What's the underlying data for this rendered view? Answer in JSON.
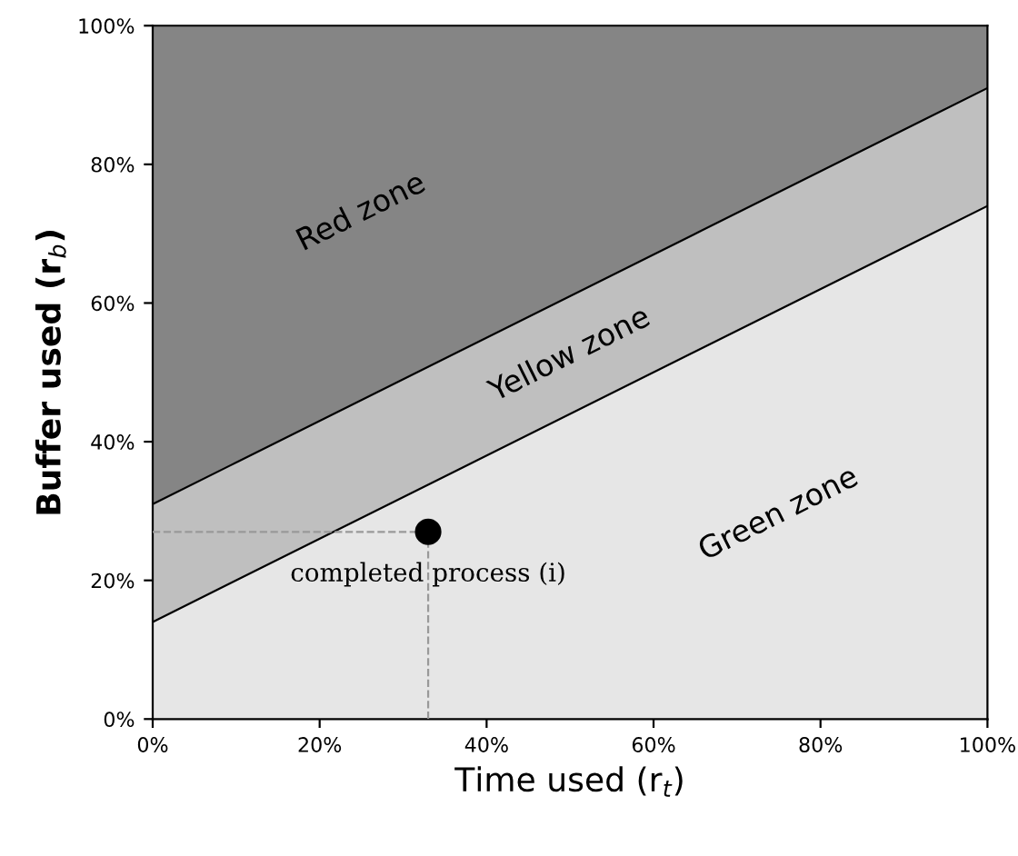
{
  "chart_data": {
    "type": "area",
    "stacked": true,
    "x": [
      0,
      100
    ],
    "series": [
      {
        "color": "#e6e6e6",
        "values": [
          14,
          74
        ]
      },
      {
        "color": "#bfbfbf",
        "values": [
          17,
          17
        ]
      },
      {
        "color": "#858585",
        "values": [
          69,
          9
        ]
      },
      {
        "type": "scatter",
        "color": "#000000",
        "x": [
          33
        ],
        "values": [
          27
        ]
      }
    ],
    "xlabel": "Time used (r$_{t}$)",
    "ylabel": "Buffer used (r$_{b}$)",
    "xlim": [
      0,
      100
    ],
    "ylim": [
      0,
      100
    ],
    "xticks": [
      {
        "value": 0,
        "label": "0%"
      },
      {
        "value": 20,
        "label": "20%"
      },
      {
        "value": 40,
        "label": "40%"
      },
      {
        "value": 60,
        "label": "60%"
      },
      {
        "value": 80,
        "label": "80%"
      },
      {
        "value": 100,
        "label": "100%"
      }
    ],
    "yticks": [
      {
        "value": 0,
        "label": "0%"
      },
      {
        "value": 20,
        "label": "20%"
      },
      {
        "value": 40,
        "label": "40%"
      },
      {
        "value": 60,
        "label": "60%"
      },
      {
        "value": 80,
        "label": "80%"
      },
      {
        "value": 100,
        "label": "100%"
      }
    ],
    "ref_lines": [
      {
        "axis": "x",
        "value": 33,
        "line_style": "dashed",
        "color": "#999999"
      },
      {
        "axis": "y",
        "value": 27,
        "line_style": "dashed",
        "color": "#999999"
      }
    ],
    "annotations": [
      "Red zone",
      "Yellow zone",
      "Green zone",
      {
        "text": "completed process (i)",
        "x": 33,
        "y": 27
      }
    ],
    "grid": false,
    "legend": false
  }
}
